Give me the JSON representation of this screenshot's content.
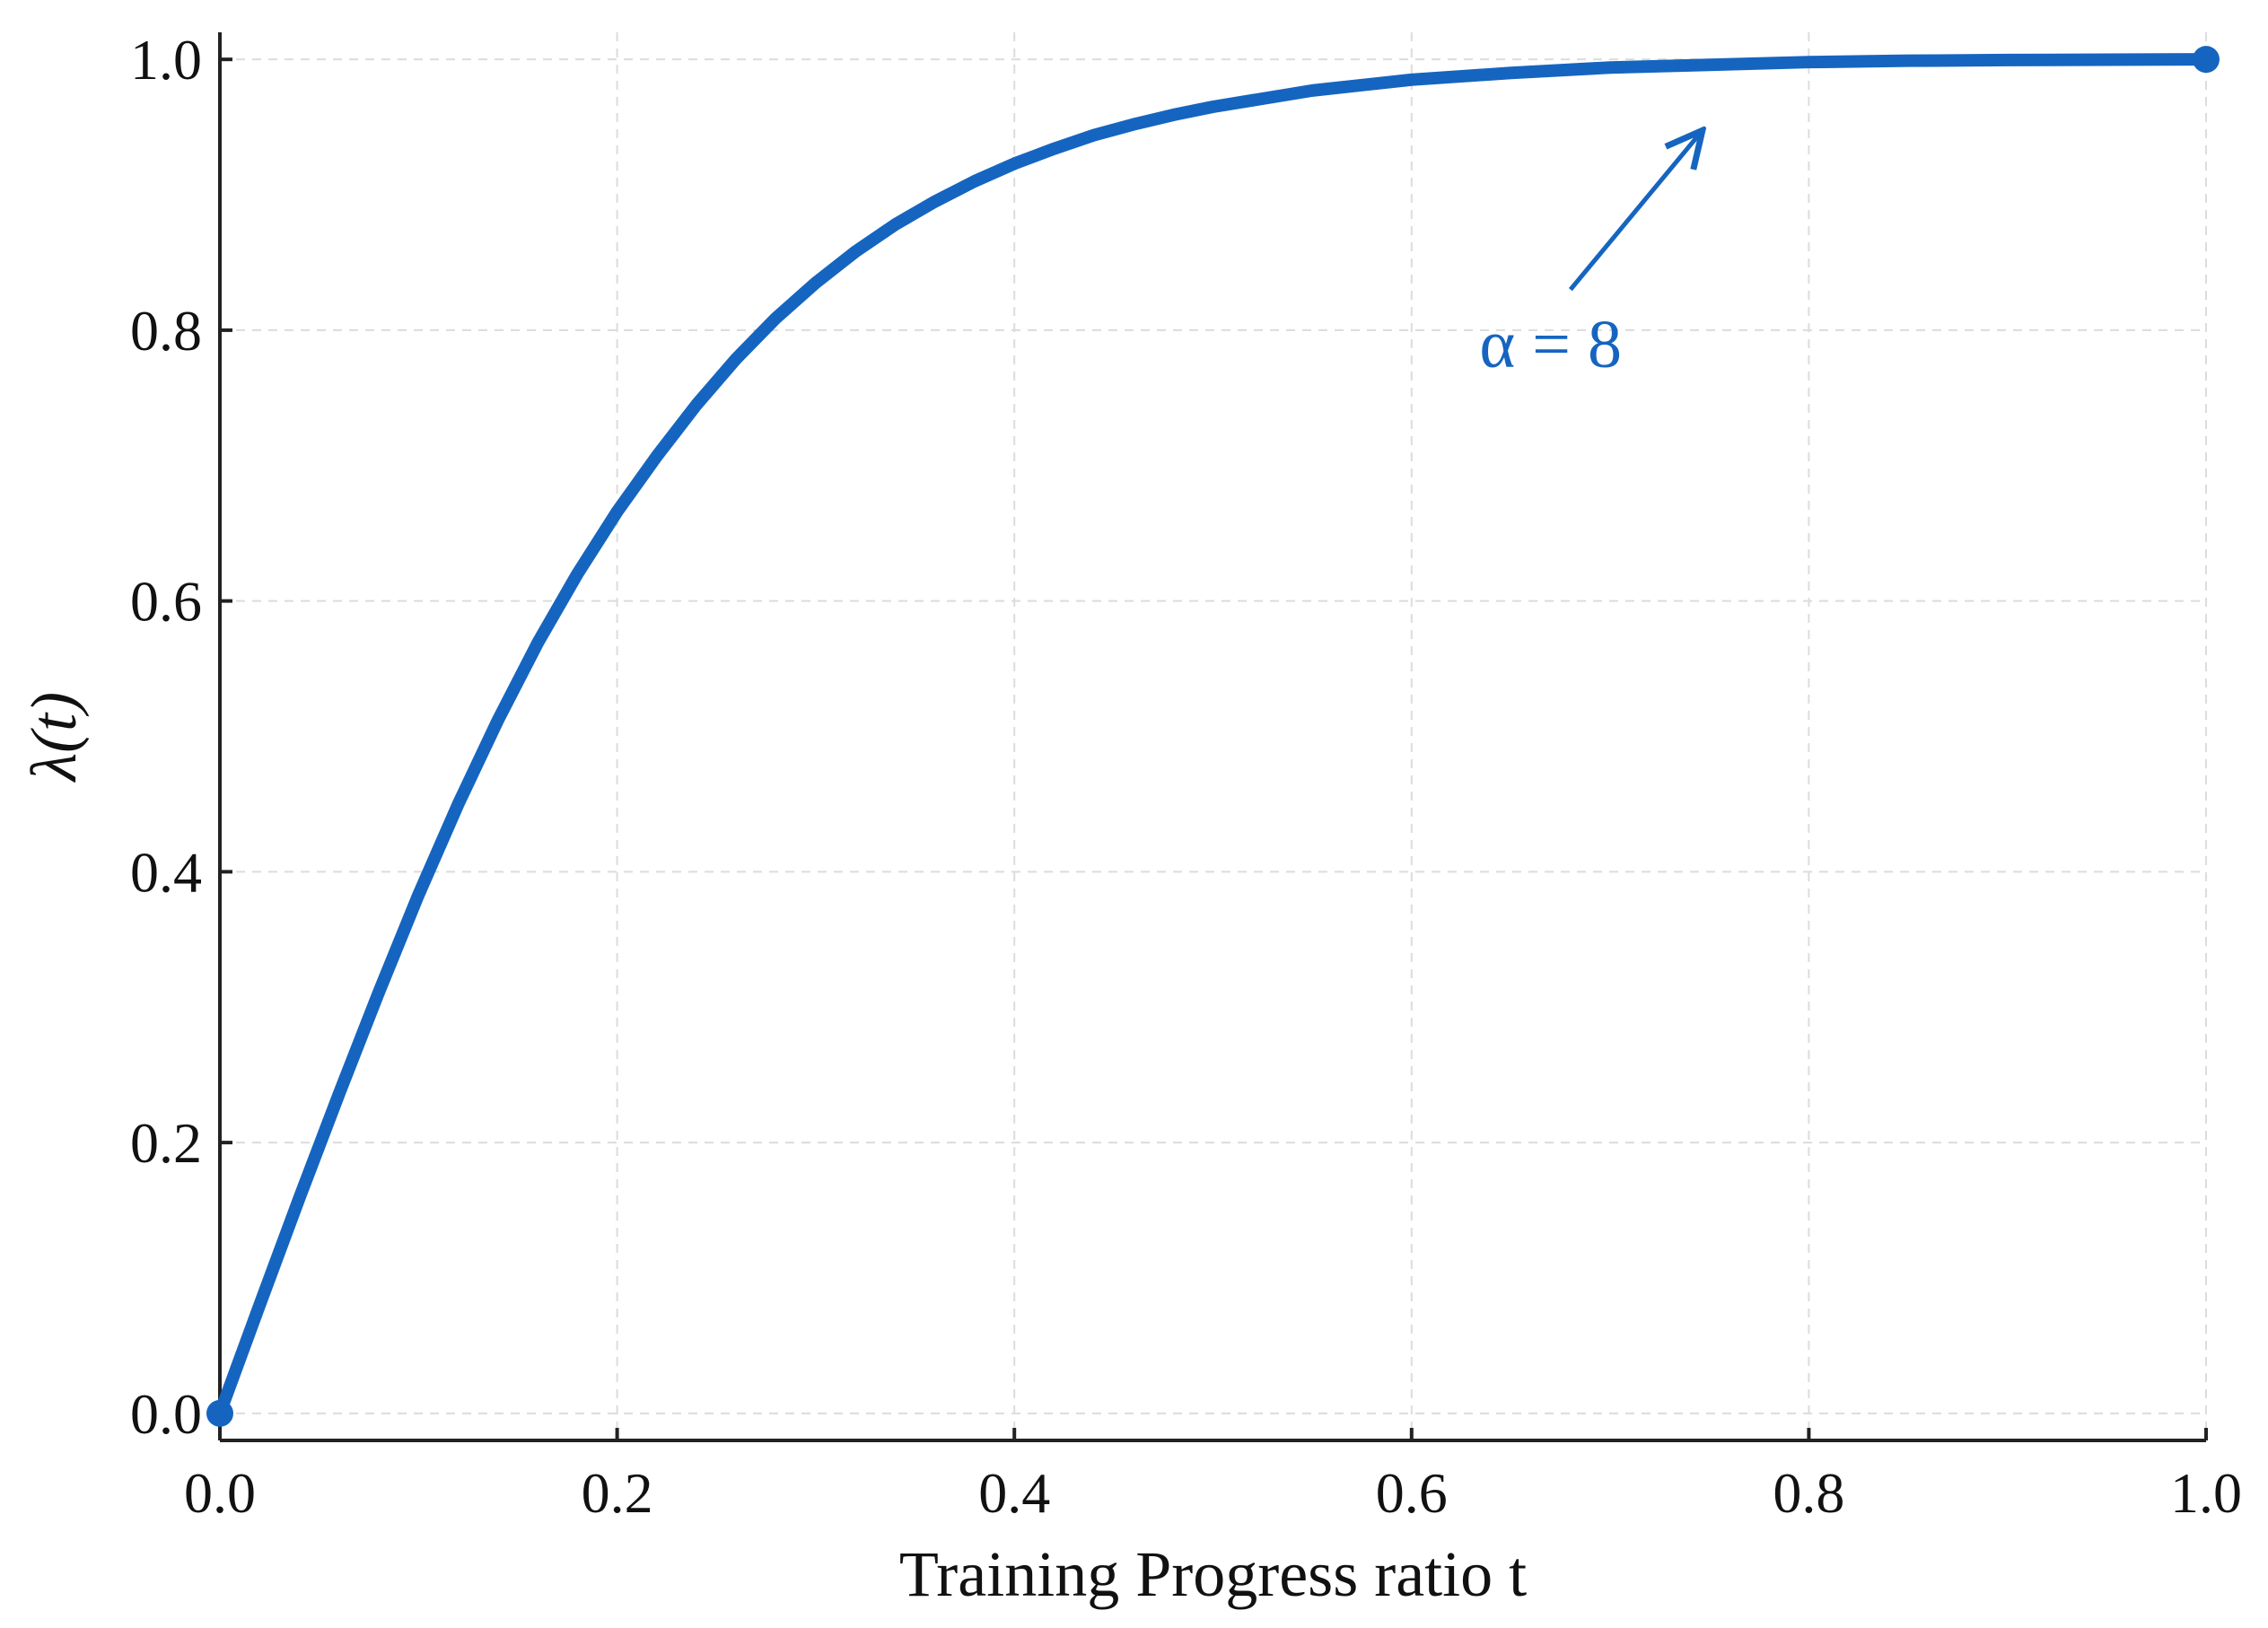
{
  "chart_data": {
    "type": "line",
    "title": "",
    "xlabel": "Training Progress ratio t",
    "ylabel": "λ(t)",
    "xlim": [
      0,
      1
    ],
    "ylim": [
      -0.02,
      1.02
    ],
    "xticks": [
      0.0,
      0.2,
      0.4,
      0.6,
      0.8,
      1.0
    ],
    "xtick_labels": [
      "0.0",
      "0.2",
      "0.4",
      "0.6",
      "0.8",
      "1.0"
    ],
    "yticks": [
      0.0,
      0.2,
      0.4,
      0.6,
      0.8,
      1.0
    ],
    "ytick_labels": [
      "0.0",
      "0.2",
      "0.4",
      "0.6",
      "0.8",
      "1.0"
    ],
    "grid": true,
    "series": [
      {
        "color": "#1565c0",
        "x": [
          0.0,
          0.02,
          0.04,
          0.06,
          0.08,
          0.1,
          0.12,
          0.14,
          0.16,
          0.18,
          0.2,
          0.22,
          0.24,
          0.26,
          0.28,
          0.3,
          0.32,
          0.34,
          0.36,
          0.38,
          0.4,
          0.42,
          0.44,
          0.46,
          0.48,
          0.5,
          0.55,
          0.6,
          0.65,
          0.7,
          0.75,
          0.8,
          0.85,
          0.9,
          0.95,
          1.0
        ],
        "y": [
          0.0,
          0.08,
          0.159,
          0.236,
          0.311,
          0.383,
          0.45,
          0.512,
          0.569,
          0.62,
          0.666,
          0.707,
          0.745,
          0.779,
          0.809,
          0.835,
          0.858,
          0.878,
          0.895,
          0.91,
          0.923,
          0.934,
          0.944,
          0.952,
          0.959,
          0.965,
          0.977,
          0.985,
          0.99,
          0.994,
          0.996,
          0.998,
          0.999,
          0.9995,
          0.9998,
          1.0
        ]
      }
    ],
    "endpoints": [
      {
        "x": 0.0,
        "y": 0.0
      },
      {
        "x": 1.0,
        "y": 1.0
      }
    ],
    "annotation": {
      "text": "α = 8",
      "text_x": 0.67,
      "text_y": 0.79,
      "arrow_from": [
        0.68,
        0.83
      ],
      "arrow_to": [
        0.745,
        0.945
      ]
    }
  }
}
